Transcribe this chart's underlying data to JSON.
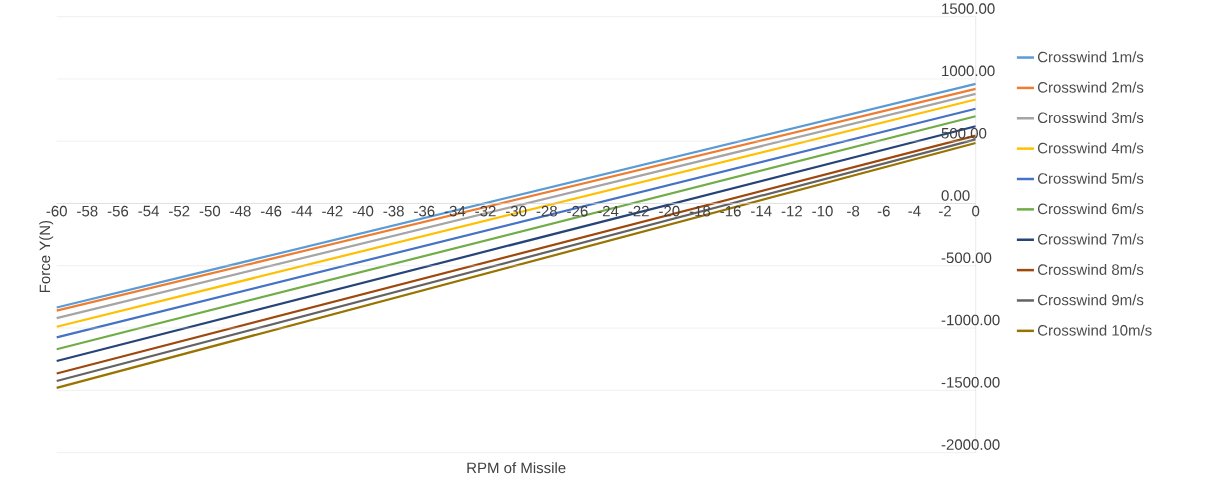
{
  "chart_data": {
    "type": "line",
    "xlabel": "RPM of Missile",
    "ylabel": "Force Y(N)",
    "x": [
      -60,
      0
    ],
    "series": [
      {
        "name": "Crosswind 1m/s",
        "color": "#5b9bd5",
        "values": [
          -835,
          960
        ]
      },
      {
        "name": "Crosswind 2m/s",
        "color": "#ed7d31",
        "values": [
          -860,
          920
        ]
      },
      {
        "name": "Crosswind 3m/s",
        "color": "#a5a5a5",
        "values": [
          -920,
          880
        ]
      },
      {
        "name": "Crosswind 4m/s",
        "color": "#ffc000",
        "values": [
          -990,
          835
        ]
      },
      {
        "name": "Crosswind 5m/s",
        "color": "#4472c4",
        "values": [
          -1075,
          760
        ]
      },
      {
        "name": "Crosswind 6m/s",
        "color": "#70ad47",
        "values": [
          -1170,
          700
        ]
      },
      {
        "name": "Crosswind 7m/s",
        "color": "#264478",
        "values": [
          -1265,
          620
        ]
      },
      {
        "name": "Crosswind 8m/s",
        "color": "#9e480e",
        "values": [
          -1365,
          545
        ]
      },
      {
        "name": "Crosswind 9m/s",
        "color": "#636363",
        "values": [
          -1425,
          515
        ]
      },
      {
        "name": "Crosswind 10m/s",
        "color": "#997300",
        "values": [
          -1480,
          485
        ]
      }
    ],
    "xlim": [
      -60,
      0
    ],
    "xticks": [
      -60,
      -58,
      -56,
      -54,
      -52,
      -50,
      -48,
      -46,
      -44,
      -42,
      -40,
      -38,
      -36,
      -34,
      -32,
      -30,
      -28,
      -26,
      -24,
      -22,
      -20,
      -18,
      -16,
      -14,
      -12,
      -10,
      -8,
      -6,
      -4,
      -2,
      0
    ],
    "ylim": [
      -2000,
      1500
    ],
    "yticks": [
      {
        "value": -2000,
        "label": "-2000.00"
      },
      {
        "value": -1500,
        "label": "-1500.00"
      },
      {
        "value": -1000,
        "label": "-1000.00"
      },
      {
        "value": -500,
        "label": "-500.00"
      },
      {
        "value": 0,
        "label": "0.00"
      },
      {
        "value": 500,
        "label": "500.00"
      },
      {
        "value": 1000,
        "label": "1000.00"
      },
      {
        "value": 1500,
        "label": "1500.00"
      }
    ],
    "grid": "y",
    "legend": "right",
    "marker": "none",
    "line_style": "solid"
  }
}
